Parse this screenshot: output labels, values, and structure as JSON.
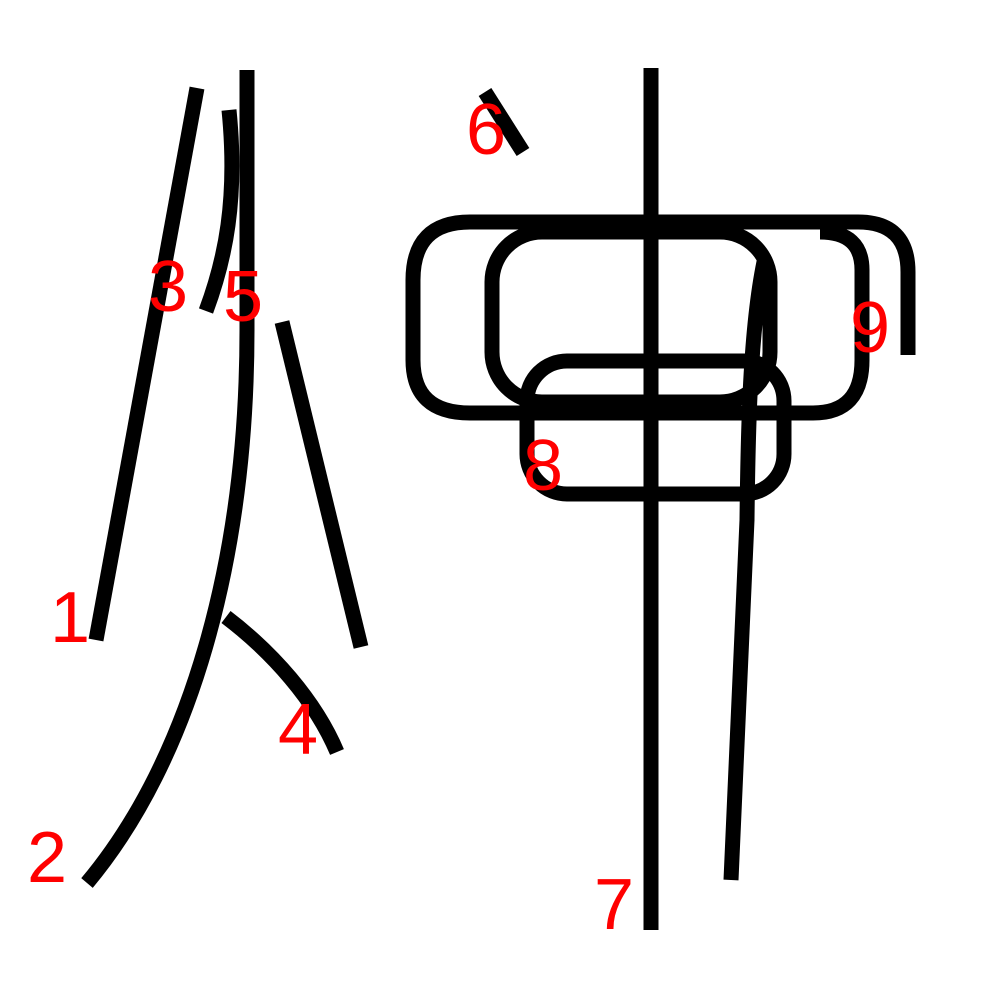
{
  "diagram": {
    "stroke_color": "#000000",
    "label_color": "#ff0000",
    "labels": [
      "1",
      "2",
      "3",
      "4",
      "5",
      "6",
      "7",
      "8",
      "9"
    ]
  }
}
